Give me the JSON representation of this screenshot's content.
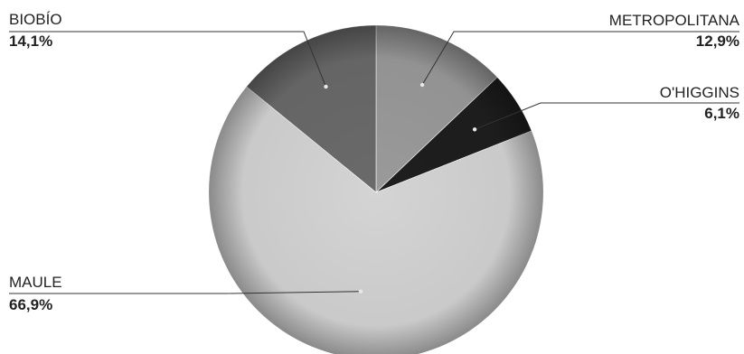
{
  "chart_data": {
    "type": "pie",
    "title": "",
    "start_angle_deg": 0,
    "direction": "clockwise",
    "slices": [
      {
        "label": "METROPOLITANA",
        "value": 12.9,
        "value_label": "12,9%",
        "color": "#9a9a9a"
      },
      {
        "label": "O'HIGGINS",
        "value": 6.1,
        "value_label": "6,1%",
        "color": "#1e1e1e"
      },
      {
        "label": "MAULE",
        "value": 66.9,
        "value_label": "66,9%",
        "color": "#d4d4d4"
      },
      {
        "label": "BIOBÍO",
        "value": 14.1,
        "value_label": "14,1%",
        "color": "#6a6a6a"
      }
    ]
  }
}
